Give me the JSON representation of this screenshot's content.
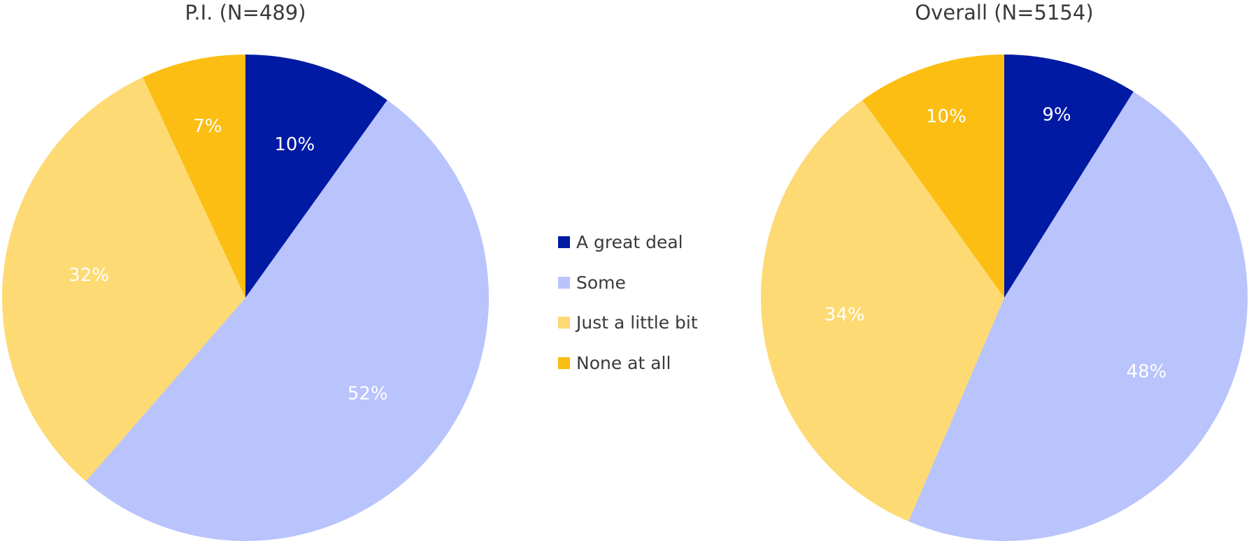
{
  "chart_data": [
    {
      "type": "pie",
      "title": "P.I. (N=489)",
      "categories": [
        "A great deal",
        "Some",
        "Just a little bit",
        "None at all"
      ],
      "values": [
        10,
        52,
        32,
        7
      ],
      "labels": [
        "10%",
        "52%",
        "32%",
        "7%"
      ]
    },
    {
      "type": "pie",
      "title": "Overall (N=5154)",
      "categories": [
        "A great deal",
        "Some",
        "Just a little bit",
        "None at all"
      ],
      "values": [
        9,
        48,
        34,
        10
      ],
      "labels": [
        "9%",
        "48%",
        "34%",
        "10%"
      ]
    }
  ],
  "legend": {
    "placement": "center",
    "items": [
      {
        "label": "A great deal",
        "color": "#001aa3"
      },
      {
        "label": "Some",
        "color": "#b9c3fc"
      },
      {
        "label": "Just a little bit",
        "color": "#fdda73"
      },
      {
        "label": "None at all",
        "color": "#fcbe13"
      }
    ]
  }
}
